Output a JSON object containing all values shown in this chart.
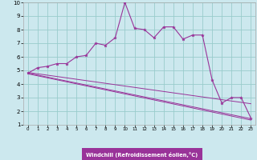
{
  "xlabel": "Windchill (Refroidissement éolien,°C)",
  "bg_color": "#cce8ee",
  "grid_color": "#99cccc",
  "line_color": "#993399",
  "xlim": [
    -0.5,
    23.5
  ],
  "ylim": [
    1,
    10
  ],
  "xticks": [
    0,
    1,
    2,
    3,
    4,
    5,
    6,
    7,
    8,
    9,
    10,
    11,
    12,
    13,
    14,
    15,
    16,
    17,
    18,
    19,
    20,
    21,
    22,
    23
  ],
  "yticks": [
    1,
    2,
    3,
    4,
    5,
    6,
    7,
    8,
    9,
    10
  ],
  "data_x": [
    0,
    1,
    2,
    3,
    4,
    5,
    6,
    7,
    8,
    9,
    10,
    11,
    12,
    13,
    14,
    15,
    16,
    17,
    18,
    19,
    20,
    21,
    22,
    23
  ],
  "data_y": [
    4.8,
    5.2,
    5.3,
    5.5,
    5.5,
    6.0,
    6.1,
    7.0,
    6.85,
    7.4,
    10.0,
    8.1,
    8.0,
    7.4,
    8.2,
    8.2,
    7.3,
    7.6,
    7.6,
    4.3,
    2.6,
    3.0,
    3.0,
    1.5
  ],
  "line1_x": [
    0,
    23
  ],
  "line1_y": [
    4.85,
    2.55
  ],
  "line2_x": [
    0,
    23
  ],
  "line2_y": [
    4.75,
    1.35
  ],
  "line3_x": [
    0,
    23
  ],
  "line3_y": [
    4.8,
    1.45
  ]
}
